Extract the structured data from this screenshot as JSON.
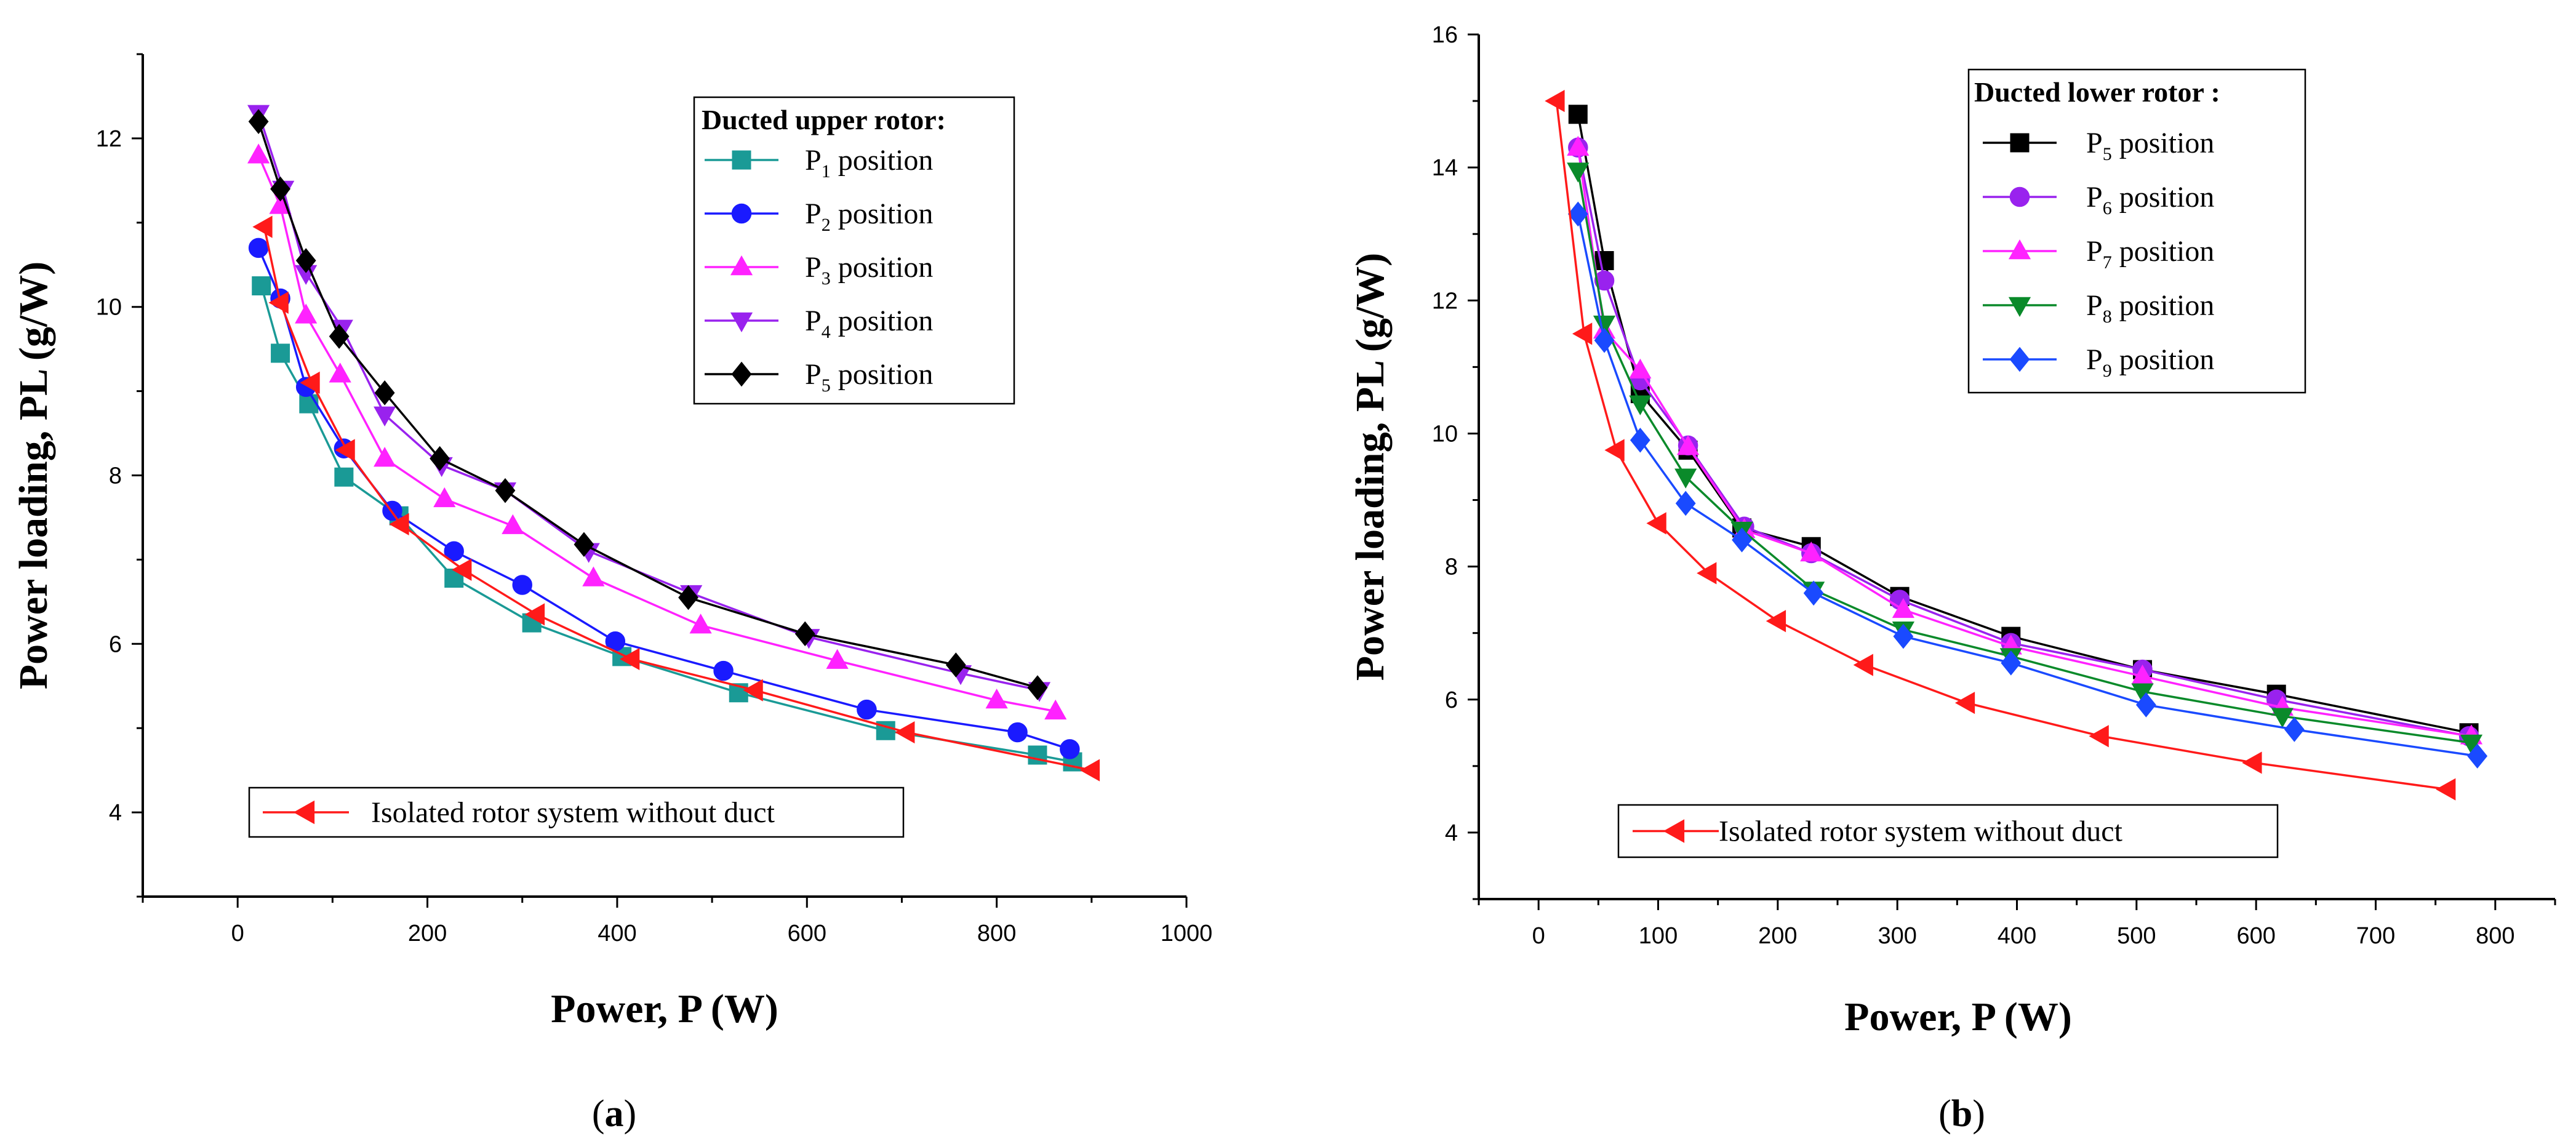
{
  "chart_data": [
    {
      "type": "line",
      "panel": "a",
      "panel_label": "a",
      "xlabel": "Power, P (W)",
      "ylabel": "Power loading, PL (g/W)",
      "xlim": [
        -100,
        1000
      ],
      "ylim": [
        3,
        13
      ],
      "xticks": [
        0,
        200,
        400,
        600,
        800,
        1000
      ],
      "yticks": [
        4,
        6,
        8,
        10,
        12
      ],
      "legend_title": "Ducted upper rotor:",
      "legend_position": "top-right",
      "series": [
        {
          "name": "P1 position",
          "label_main": "P",
          "label_sub": "1",
          "label_rest": " position",
          "color": "#1a9a96",
          "marker": "square",
          "x": [
            25,
            45,
            75,
            112,
            170,
            228,
            310,
            405,
            528,
            683,
            843,
            880
          ],
          "y": [
            10.25,
            9.45,
            8.85,
            7.98,
            7.52,
            6.78,
            6.25,
            5.85,
            5.42,
            4.97,
            4.68,
            4.6
          ]
        },
        {
          "name": "P2 position",
          "label_main": "P",
          "label_sub": "2",
          "label_rest": " position",
          "color": "#1a1aff",
          "marker": "circle",
          "x": [
            22,
            45,
            72,
            112,
            163,
            228,
            300,
            398,
            512,
            663,
            822,
            877
          ],
          "y": [
            10.7,
            10.1,
            9.05,
            8.32,
            7.58,
            7.1,
            6.7,
            6.03,
            5.68,
            5.22,
            4.95,
            4.75
          ]
        },
        {
          "name": "P3 position",
          "label_main": "P",
          "label_sub": "3",
          "label_rest": " position",
          "color": "#ff22ff",
          "marker": "triangle-up",
          "x": [
            22,
            45,
            72,
            108,
            155,
            218,
            290,
            375,
            488,
            632,
            800,
            862
          ],
          "y": [
            11.8,
            11.2,
            9.9,
            9.2,
            8.2,
            7.72,
            7.4,
            6.78,
            6.22,
            5.8,
            5.33,
            5.2
          ]
        },
        {
          "name": "P4 position",
          "label_main": "P",
          "label_sub": "4",
          "label_rest": " position",
          "color": "#9922ee",
          "marker": "triangle-down",
          "x": [
            22,
            48,
            72,
            110,
            155,
            215,
            282,
            370,
            478,
            602,
            762,
            845
          ],
          "y": [
            12.3,
            11.4,
            10.4,
            9.75,
            8.72,
            8.12,
            7.82,
            7.1,
            6.6,
            6.08,
            5.65,
            5.45
          ]
        },
        {
          "name": "P5 position",
          "label_main": "P",
          "label_sub": "5",
          "label_rest": " position",
          "color": "#000000",
          "marker": "diamond",
          "x": [
            22,
            45,
            72,
            107,
            155,
            213,
            282,
            365,
            475,
            598,
            757,
            843
          ],
          "y": [
            12.2,
            11.4,
            10.55,
            9.65,
            8.98,
            8.2,
            7.82,
            7.18,
            6.55,
            6.12,
            5.75,
            5.48
          ]
        },
        {
          "name": "Isolated rotor system without duct",
          "color": "#ff1a1a",
          "marker": "triangle-left",
          "x": [
            28,
            45,
            78,
            115,
            172,
            238,
            315,
            415,
            545,
            705,
            900
          ],
          "y": [
            10.95,
            10.05,
            9.1,
            8.3,
            7.42,
            6.88,
            6.35,
            5.82,
            5.45,
            4.95,
            4.5
          ]
        }
      ],
      "isolated_legend_text": "Isolated rotor system without duct"
    },
    {
      "type": "line",
      "panel": "b",
      "panel_label": "b",
      "xlabel": "Power, P (W)",
      "ylabel": "Power loading, PL (g/W)",
      "xlim": [
        -50,
        850
      ],
      "ylim": [
        3,
        16
      ],
      "xticks": [
        0,
        100,
        200,
        300,
        400,
        500,
        600,
        700,
        800
      ],
      "yticks": [
        4,
        6,
        8,
        10,
        12,
        14,
        16
      ],
      "legend_title": "Ducted lower rotor :",
      "legend_position": "top-right",
      "series": [
        {
          "name": "P5 position",
          "label_main": "P",
          "label_sub": "5",
          "label_rest": " position",
          "color": "#000000",
          "marker": "square",
          "x": [
            33,
            55,
            85,
            125,
            170,
            228,
            302,
            395,
            505,
            617,
            778
          ],
          "y": [
            14.8,
            12.6,
            10.6,
            9.75,
            8.58,
            8.3,
            7.55,
            6.95,
            6.45,
            6.08,
            5.5
          ]
        },
        {
          "name": "P6 position",
          "label_main": "P",
          "label_sub": "6",
          "label_rest": " position",
          "color": "#9922ee",
          "marker": "circle",
          "x": [
            33,
            55,
            85,
            125,
            172,
            228,
            302,
            395,
            505,
            617,
            778
          ],
          "y": [
            14.3,
            12.3,
            10.8,
            9.82,
            8.6,
            8.2,
            7.5,
            6.85,
            6.45,
            6.0,
            5.45
          ]
        },
        {
          "name": "P7 position",
          "label_main": "P",
          "label_sub": "7",
          "label_rest": " position",
          "color": "#ff22ff",
          "marker": "triangle-up",
          "x": [
            33,
            55,
            85,
            125,
            172,
            228,
            305,
            395,
            505,
            622,
            780
          ],
          "y": [
            14.3,
            11.55,
            10.95,
            9.8,
            8.55,
            8.2,
            7.35,
            6.8,
            6.35,
            5.88,
            5.45
          ]
        },
        {
          "name": "P8 position",
          "label_main": "P",
          "label_sub": "8",
          "label_rest": " position",
          "color": "#0a8a2a",
          "marker": "triangle-down",
          "x": [
            33,
            55,
            85,
            123,
            170,
            230,
            305,
            395,
            505,
            622,
            780
          ],
          "y": [
            13.95,
            11.65,
            10.45,
            9.35,
            8.55,
            7.65,
            7.05,
            6.65,
            6.12,
            5.75,
            5.35
          ]
        },
        {
          "name": "P9 position",
          "label_main": "P",
          "label_sub": "9",
          "label_rest": " position",
          "color": "#1a4aff",
          "marker": "diamond",
          "x": [
            33,
            55,
            85,
            123,
            170,
            230,
            305,
            395,
            508,
            632,
            785
          ],
          "y": [
            13.3,
            11.4,
            9.9,
            8.95,
            8.4,
            7.6,
            6.95,
            6.55,
            5.92,
            5.55,
            5.15
          ]
        },
        {
          "name": "Isolated rotor system without duct",
          "color": "#ff1a1a",
          "marker": "triangle-left",
          "x": [
            15,
            38,
            65,
            100,
            142,
            200,
            273,
            358,
            470,
            598,
            760
          ],
          "y": [
            15.0,
            11.5,
            9.75,
            8.65,
            7.9,
            7.18,
            6.52,
            5.95,
            5.45,
            5.05,
            4.65
          ]
        }
      ],
      "isolated_legend_text": "Isolated rotor system without duct"
    }
  ]
}
